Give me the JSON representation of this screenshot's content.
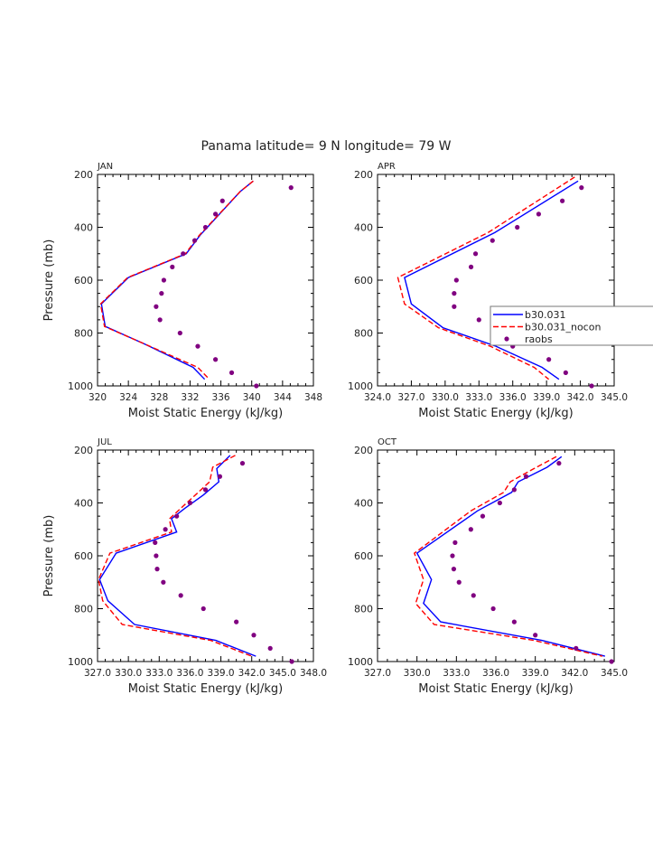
{
  "title": "Panama  latitude= 9 N longitude= 79 W",
  "legend": {
    "items": [
      {
        "label": "b30.031",
        "color": "#0000ff",
        "style": "solid"
      },
      {
        "label": "b30.031_nocon",
        "color": "#ff0000",
        "style": "dashed"
      },
      {
        "label": "raobs",
        "color": "#800080",
        "style": "marker"
      }
    ]
  },
  "colors": {
    "model": "#0000ff",
    "nocon": "#ff0000",
    "raobs": "#800080"
  },
  "chart_data": [
    {
      "type": "line",
      "panel_label": "JAN",
      "xlabel": "Moist Static Energy (kJ/kg)",
      "ylabel": "Pressure (mb)",
      "xlim": [
        320,
        348
      ],
      "ylim": [
        1000,
        200
      ],
      "xticks": [
        "320",
        "324",
        "328",
        "332",
        "336",
        "340",
        "344",
        "348"
      ],
      "yticks": [
        "200",
        "400",
        "600",
        "800",
        "1000"
      ],
      "series": [
        {
          "name": "b30.031",
          "x": [
            340.2,
            338.5,
            333.3,
            331.5,
            324,
            320.5,
            321,
            326,
            332.4,
            333.9
          ],
          "y": [
            225,
            265,
            430,
            500,
            590,
            690,
            775,
            840,
            930,
            975
          ]
        },
        {
          "name": "b30.031_nocon",
          "x": [
            340.2,
            338.5,
            333.2,
            331.4,
            323.9,
            320.4,
            320.9,
            326,
            333,
            334.5
          ],
          "y": [
            225,
            265,
            430,
            500,
            590,
            690,
            775,
            840,
            930,
            975
          ]
        },
        {
          "name": "raobs",
          "x": [
            345.1,
            336.2,
            335.3,
            334,
            332.6,
            331.1,
            329.7,
            328.6,
            328.3,
            327.6,
            328.1,
            330.7,
            333,
            335.3,
            337.4,
            340.6
          ],
          "y": [
            250,
            300,
            350,
            400,
            450,
            500,
            550,
            600,
            650,
            700,
            750,
            800,
            850,
            900,
            950,
            1000
          ]
        }
      ]
    },
    {
      "type": "line",
      "panel_label": "APR",
      "xlabel": "Moist Static Energy (kJ/kg)",
      "ylabel": "",
      "xlim": [
        324.0,
        345.0
      ],
      "ylim": [
        1000,
        200
      ],
      "xticks": [
        "324.0",
        "327.0",
        "330.0",
        "333.0",
        "336.0",
        "339.0",
        "342.0",
        "345.0"
      ],
      "yticks": [
        "200",
        "400",
        "600",
        "800",
        "1000"
      ],
      "series": [
        {
          "name": "b30.031",
          "x": [
            341.8,
            334.4,
            326.4,
            327,
            329.8,
            334.5,
            338.6,
            340.1
          ],
          "y": [
            225,
            420,
            590,
            690,
            780,
            850,
            930,
            975
          ]
        },
        {
          "name": "b30.031_nocon",
          "x": [
            341.5,
            333.8,
            325.8,
            326.4,
            329.4,
            334,
            337.9,
            339.2
          ],
          "y": [
            210,
            420,
            590,
            690,
            780,
            850,
            930,
            975
          ]
        },
        {
          "name": "raobs",
          "x": [
            342.1,
            340.4,
            338.3,
            336.4,
            334.2,
            332.7,
            332.3,
            331,
            330.8,
            330.8,
            333,
            334.9,
            336,
            339.2,
            340.7,
            343
          ],
          "y": [
            250,
            300,
            350,
            400,
            450,
            500,
            550,
            600,
            650,
            700,
            750,
            800,
            850,
            900,
            950,
            1000
          ]
        }
      ]
    },
    {
      "type": "line",
      "panel_label": "JUL",
      "xlabel": "Moist Static Energy (kJ/kg)",
      "ylabel": "Pressure (mb)",
      "xlim": [
        327.0,
        348.0
      ],
      "ylim": [
        1000,
        200
      ],
      "xticks": [
        "327.0",
        "330.0",
        "333.0",
        "336.0",
        "339.0",
        "342.0",
        "345.0",
        "348.0"
      ],
      "yticks": [
        "200",
        "400",
        "600",
        "800",
        "1000"
      ],
      "series": [
        {
          "name": "b30.031",
          "x": [
            339.9,
            338.6,
            338.8,
            337.3,
            335.5,
            334.2,
            334.7,
            328.8,
            327.2,
            328,
            330.6,
            338.5,
            342.4
          ],
          "y": [
            220,
            270,
            320,
            370,
            420,
            460,
            510,
            590,
            690,
            770,
            860,
            920,
            980
          ]
        },
        {
          "name": "b30.031_nocon",
          "x": [
            340.4,
            338.2,
            337.9,
            336.8,
            335.1,
            334,
            334.2,
            328.2,
            327.1,
            327.5,
            329.4,
            338,
            342
          ],
          "y": [
            220,
            265,
            320,
            360,
            420,
            460,
            510,
            590,
            690,
            770,
            860,
            920,
            980
          ]
        },
        {
          "name": "raobs",
          "x": [
            341.1,
            338.9,
            337.5,
            336,
            334.7,
            333.6,
            332.6,
            332.7,
            332.8,
            333.4,
            335.1,
            337.3,
            340.5,
            342.2,
            343.8,
            345.9
          ],
          "y": [
            250,
            300,
            350,
            400,
            450,
            500,
            550,
            600,
            650,
            700,
            750,
            800,
            850,
            900,
            950,
            1000
          ]
        }
      ]
    },
    {
      "type": "line",
      "panel_label": "OCT",
      "xlabel": "Moist Static Energy (kJ/kg)",
      "ylabel": "",
      "xlim": [
        327.0,
        345.0
      ],
      "ylim": [
        1000,
        200
      ],
      "xticks": [
        "327.0",
        "330.0",
        "333.0",
        "336.0",
        "339.0",
        "342.0",
        "345.0"
      ],
      "yticks": [
        "200",
        "400",
        "600",
        "800",
        "1000"
      ],
      "series": [
        {
          "name": "b30.031",
          "x": [
            341,
            339.9,
            337.7,
            337.2,
            334.6,
            330,
            331.1,
            330.5,
            331.8,
            339.5,
            344.3
          ],
          "y": [
            225,
            265,
            320,
            360,
            430,
            590,
            690,
            780,
            850,
            920,
            980
          ]
        },
        {
          "name": "b30.031_nocon",
          "x": [
            340.6,
            338.9,
            337.1,
            336.6,
            334.1,
            329.8,
            330.5,
            329.9,
            331.3,
            338.9,
            344.1
          ],
          "y": [
            225,
            270,
            320,
            360,
            430,
            590,
            690,
            780,
            860,
            920,
            980
          ]
        },
        {
          "name": "raobs",
          "x": [
            340.8,
            338.3,
            337.4,
            336.3,
            335,
            334.1,
            332.9,
            332.7,
            332.8,
            333.2,
            334.3,
            335.8,
            337.4,
            339,
            342.1,
            344.8
          ],
          "y": [
            250,
            300,
            350,
            400,
            450,
            500,
            550,
            600,
            650,
            700,
            750,
            800,
            850,
            900,
            950,
            1000
          ]
        }
      ]
    }
  ]
}
